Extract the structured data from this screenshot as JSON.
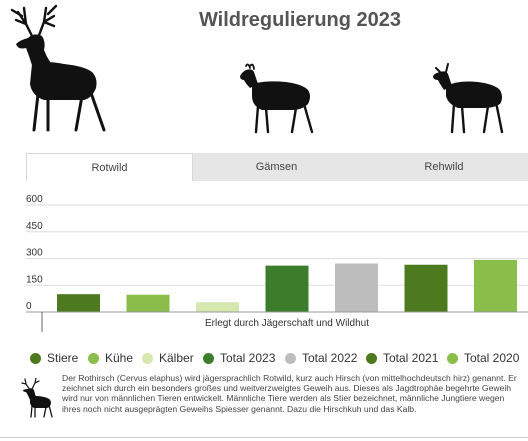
{
  "page": {
    "title": "Wildregulierung 2023"
  },
  "tabs": [
    {
      "label": "Rotwild",
      "active": true
    },
    {
      "label": "Gämsen",
      "active": false
    },
    {
      "label": "Rehwild",
      "active": false
    }
  ],
  "chart_data": {
    "type": "bar",
    "title": "",
    "xlabel": "Erlegt durch Jägerschaft und Wildhut",
    "ylabel": "",
    "ylim": [
      0,
      600
    ],
    "yticks": [
      0,
      150,
      300,
      450,
      600
    ],
    "grid": true,
    "legend_position": "bottom",
    "series": [
      {
        "name": "Stiere",
        "value": 100,
        "color": "#4e7a1f"
      },
      {
        "name": "Kühe",
        "value": 97,
        "color": "#8bbd4a"
      },
      {
        "name": "Kälber",
        "value": 55,
        "color": "#d5e8b0"
      },
      {
        "name": "Total 2023",
        "value": 260,
        "color": "#3b7d2a"
      },
      {
        "name": "Total 2022",
        "value": 272,
        "color": "#bdbdbd"
      },
      {
        "name": "Total 2021",
        "value": 265,
        "color": "#4e7a1f"
      },
      {
        "name": "Total 2020",
        "value": 292,
        "color": "#8bbd4a"
      }
    ]
  },
  "description": "Der Rothirsch (Cervus elaphus) wird jägersprachlich Rotwild, kurz auch Hirsch (von mittelhochdeutsch hirz) genannt. Er zeichnet sich durch ein besonders großes und weitverzweigtes Geweih aus. Dieses als Jagdtrophäe begehrte Geweih wird nur von männlichen Tieren entwickelt. Männliche Tiere werden als Stier bezeichnet, männliche Jungtiere wegen ihres noch nicht ausgeprägten Geweihs Spiesser genannt. Dazu die Hirschkuh und das Kalb.",
  "icons": {
    "stag": "red-deer-stag-icon",
    "chamois": "chamois-icon",
    "roe": "roe-deer-icon",
    "small_stag": "red-deer-small-icon"
  },
  "colors": {
    "silhouette": "#111111",
    "tab_bg": "#e6e6e6",
    "grid": "#dddddd"
  }
}
